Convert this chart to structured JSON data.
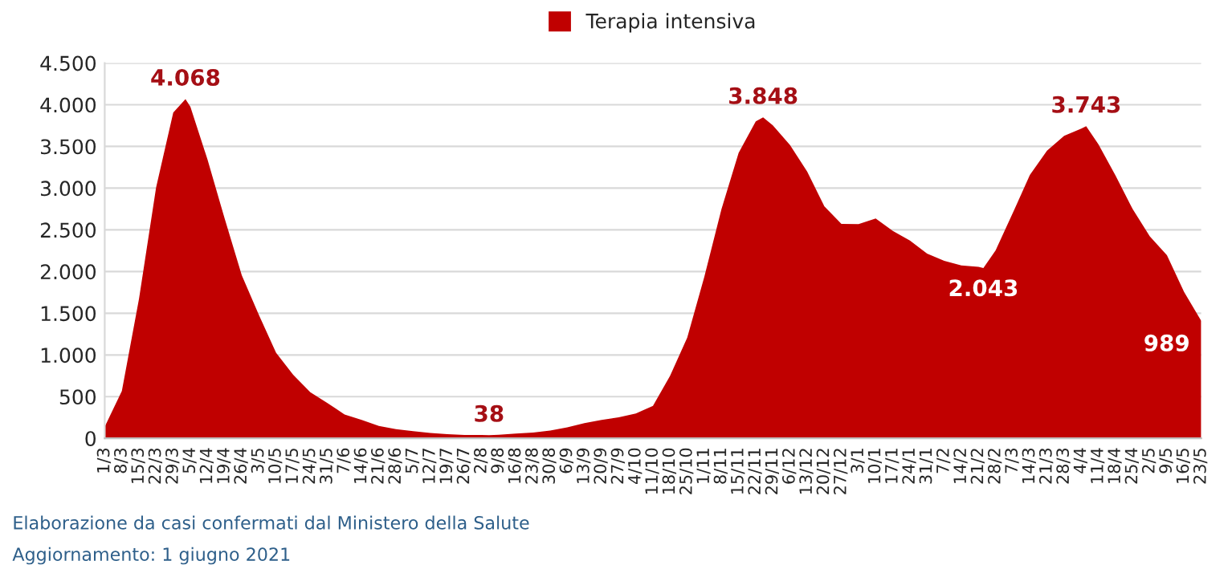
{
  "chart_data": {
    "type": "area",
    "x": [
      "2020-03-01",
      "2020-03-08",
      "2020-03-15",
      "2020-03-22",
      "2020-03-29",
      "2020-04-03",
      "2020-04-05",
      "2020-04-12",
      "2020-04-19",
      "2020-04-26",
      "2020-05-03",
      "2020-05-10",
      "2020-05-17",
      "2020-05-24",
      "2020-05-31",
      "2020-06-07",
      "2020-06-14",
      "2020-06-21",
      "2020-06-28",
      "2020-07-05",
      "2020-07-12",
      "2020-07-19",
      "2020-07-26",
      "2020-08-02",
      "2020-08-05",
      "2020-08-09",
      "2020-08-16",
      "2020-08-23",
      "2020-08-30",
      "2020-09-06",
      "2020-09-13",
      "2020-09-20",
      "2020-09-27",
      "2020-10-04",
      "2020-10-11",
      "2020-10-18",
      "2020-10-25",
      "2020-11-01",
      "2020-11-08",
      "2020-11-15",
      "2020-11-22",
      "2020-11-25",
      "2020-11-29",
      "2020-12-06",
      "2020-12-13",
      "2020-12-20",
      "2020-12-27",
      "2021-01-03",
      "2021-01-10",
      "2021-01-17",
      "2021-01-24",
      "2021-01-31",
      "2021-02-07",
      "2021-02-14",
      "2021-02-21",
      "2021-02-23",
      "2021-02-28",
      "2021-03-07",
      "2021-03-14",
      "2021-03-21",
      "2021-03-28",
      "2021-04-04",
      "2021-04-06",
      "2021-04-11",
      "2021-04-18",
      "2021-04-25",
      "2021-05-02",
      "2021-05-09",
      "2021-05-16",
      "2021-05-23"
    ],
    "series": [
      {
        "name": "Terapia intensiva",
        "color": "#c00000",
        "values": [
          140,
          567,
          1672,
          3009,
          3906,
          4068,
          3977,
          3343,
          2635,
          1956,
          1479,
          1027,
          762,
          553,
          424,
          287,
          220,
          148,
          110,
          87,
          65,
          49,
          41,
          41,
          38,
          42,
          58,
          69,
          94,
          133,
          182,
          222,
          251,
          297,
          390,
          750,
          1208,
          1939,
          2749,
          3422,
          3801,
          3848,
          3753,
          3517,
          3199,
          2784,
          2570,
          2569,
          2636,
          2487,
          2372,
          2214,
          2128,
          2074,
          2057,
          2043,
          2253,
          2700,
          3157,
          3448,
          3627,
          3714,
          3743,
          3526,
          3151,
          2748,
          2423,
          2196,
          1755,
          1410
        ]
      }
    ],
    "xlim": [
      "2020-03-01",
      "2021-05-23"
    ],
    "xticks": [
      {
        "value": "2020-03-01",
        "label": "1/3"
      },
      {
        "value": "2020-03-08",
        "label": "8/3"
      },
      {
        "value": "2020-03-15",
        "label": "15/3"
      },
      {
        "value": "2020-03-22",
        "label": "22/3"
      },
      {
        "value": "2020-03-29",
        "label": "29/3"
      },
      {
        "value": "2020-04-05",
        "label": "5/4"
      },
      {
        "value": "2020-04-12",
        "label": "12/4"
      },
      {
        "value": "2020-04-19",
        "label": "19/4"
      },
      {
        "value": "2020-04-26",
        "label": "26/4"
      },
      {
        "value": "2020-05-03",
        "label": "3/5"
      },
      {
        "value": "2020-05-10",
        "label": "10/5"
      },
      {
        "value": "2020-05-17",
        "label": "17/5"
      },
      {
        "value": "2020-05-24",
        "label": "24/5"
      },
      {
        "value": "2020-05-31",
        "label": "31/5"
      },
      {
        "value": "2020-06-07",
        "label": "7/6"
      },
      {
        "value": "2020-06-14",
        "label": "14/6"
      },
      {
        "value": "2020-06-21",
        "label": "21/6"
      },
      {
        "value": "2020-06-28",
        "label": "28/6"
      },
      {
        "value": "2020-07-05",
        "label": "5/7"
      },
      {
        "value": "2020-07-12",
        "label": "12/7"
      },
      {
        "value": "2020-07-19",
        "label": "19/7"
      },
      {
        "value": "2020-07-26",
        "label": "26/7"
      },
      {
        "value": "2020-08-02",
        "label": "2/8"
      },
      {
        "value": "2020-08-09",
        "label": "9/8"
      },
      {
        "value": "2020-08-16",
        "label": "16/8"
      },
      {
        "value": "2020-08-23",
        "label": "23/8"
      },
      {
        "value": "2020-08-30",
        "label": "30/8"
      },
      {
        "value": "2020-09-06",
        "label": "6/9"
      },
      {
        "value": "2020-09-13",
        "label": "13/9"
      },
      {
        "value": "2020-09-20",
        "label": "20/9"
      },
      {
        "value": "2020-09-27",
        "label": "27/9"
      },
      {
        "value": "2020-10-04",
        "label": "4/10"
      },
      {
        "value": "2020-10-11",
        "label": "11/10"
      },
      {
        "value": "2020-10-18",
        "label": "18/10"
      },
      {
        "value": "2020-10-25",
        "label": "25/10"
      },
      {
        "value": "2020-11-01",
        "label": "1/11"
      },
      {
        "value": "2020-11-08",
        "label": "8/11"
      },
      {
        "value": "2020-11-15",
        "label": "15/11"
      },
      {
        "value": "2020-11-22",
        "label": "22/11"
      },
      {
        "value": "2020-11-29",
        "label": "29/11"
      },
      {
        "value": "2020-12-06",
        "label": "6/12"
      },
      {
        "value": "2020-12-13",
        "label": "13/12"
      },
      {
        "value": "2020-12-20",
        "label": "20/12"
      },
      {
        "value": "2020-12-27",
        "label": "27/12"
      },
      {
        "value": "2021-01-03",
        "label": "3/1"
      },
      {
        "value": "2021-01-10",
        "label": "10/1"
      },
      {
        "value": "2021-01-17",
        "label": "17/1"
      },
      {
        "value": "2021-01-24",
        "label": "24/1"
      },
      {
        "value": "2021-01-31",
        "label": "31/1"
      },
      {
        "value": "2021-02-07",
        "label": "7/2"
      },
      {
        "value": "2021-02-14",
        "label": "14/2"
      },
      {
        "value": "2021-02-21",
        "label": "21/2"
      },
      {
        "value": "2021-02-28",
        "label": "28/2"
      },
      {
        "value": "2021-03-07",
        "label": "7/3"
      },
      {
        "value": "2021-03-14",
        "label": "14/3"
      },
      {
        "value": "2021-03-21",
        "label": "21/3"
      },
      {
        "value": "2021-03-28",
        "label": "28/3"
      },
      {
        "value": "2021-04-04",
        "label": "4/4"
      },
      {
        "value": "2021-04-11",
        "label": "11/4"
      },
      {
        "value": "2021-04-18",
        "label": "18/4"
      },
      {
        "value": "2021-04-25",
        "label": "25/4"
      },
      {
        "value": "2021-05-02",
        "label": "2/5"
      },
      {
        "value": "2021-05-09",
        "label": "9/5"
      },
      {
        "value": "2021-05-16",
        "label": "16/5"
      },
      {
        "value": "2021-05-23",
        "label": "23/5"
      }
    ],
    "ylim": [
      0,
      4500
    ],
    "yticks": [
      0,
      {
        "value": 500,
        "label": "500"
      },
      {
        "value": 1000,
        "label": "1.000"
      },
      {
        "value": 1500,
        "label": "1.500"
      },
      {
        "value": 2000,
        "label": "2.000"
      },
      {
        "value": 2500,
        "label": "2.500"
      },
      {
        "value": 3000,
        "label": "3.000"
      },
      {
        "value": 3500,
        "label": "3.500"
      },
      {
        "value": 4000,
        "label": "4.000"
      },
      {
        "value": 4500,
        "label": "4.500"
      }
    ],
    "grid": "y",
    "legend": "top",
    "annotations": [
      {
        "text": "4.068",
        "x": "2020-04-03",
        "y": 4068
      },
      {
        "text": "38",
        "x": "2020-08-05",
        "y": 38
      },
      {
        "text": "3.848",
        "x": "2020-11-25",
        "y": 3848
      },
      {
        "text": "2.043",
        "x": "2021-02-23",
        "y": 2043
      },
      {
        "text": "3.743",
        "x": "2021-04-06",
        "y": 3743
      },
      {
        "text": "989",
        "x": "2021-05-23",
        "y": 1410
      },
      "Elaborazione da casi confermati dal Ministero della Salute",
      "Aggiornamento: 1 giugno 2021"
    ]
  }
}
